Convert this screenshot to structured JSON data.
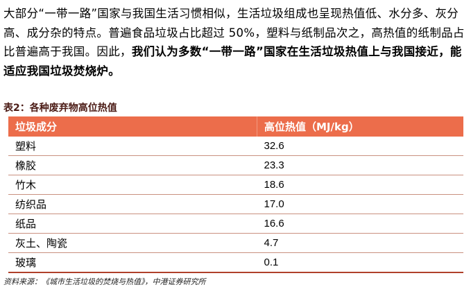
{
  "paragraph": {
    "normal": "大部分“一带一路”国家与我国生活习惯相似，生活垃圾组成也呈现热值低、水分多、灰分高、成分杂的特点。普遍食品垃圾占比超过 50%，塑料与纸制品次之，高热值的纸制品占比普遍高于我国。因此，",
    "bold": "我们认为多数“一带一路”国家在生活垃圾热值上与我国接近，能适应我国垃圾焚烧炉。"
  },
  "table": {
    "caption": "表2：各种废弃物高位热值",
    "headers": [
      "垃圾成分",
      "高位热值（MJ/kg）"
    ],
    "rows": [
      [
        "塑料",
        "32.6"
      ],
      [
        "橡胶",
        "23.3"
      ],
      [
        "竹木",
        "18.6"
      ],
      [
        "纺织品",
        "17.0"
      ],
      [
        "纸品",
        "16.6"
      ],
      [
        "灰土、陶瓷",
        "4.7"
      ],
      [
        "玻璃",
        "0.1"
      ]
    ],
    "header_color": "#ec6d4b"
  },
  "source": "资料来源：《城市生活垃圾的焚烧与热值》，中港证券研究所"
}
